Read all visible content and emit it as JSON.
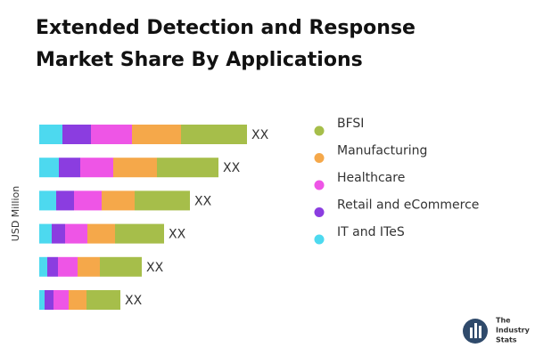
{
  "chart_data": {
    "type": "stacked-barh",
    "title": "Extended Detection and Response Market Share By Applications",
    "ylabel": "USD Million",
    "categories": [
      null,
      null,
      null,
      null,
      null,
      null
    ],
    "series": [
      {
        "name": "IT and ITeS",
        "color": "#4dd9ef",
        "values": [
          26,
          22,
          19,
          14,
          9,
          6
        ]
      },
      {
        "name": "Retail and eCommerce",
        "color": "#8b3de0",
        "values": [
          32,
          24,
          20,
          15,
          12,
          10
        ]
      },
      {
        "name": "Healthcare",
        "color": "#ee55e6",
        "values": [
          46,
          37,
          31,
          25,
          22,
          17
        ]
      },
      {
        "name": "Manufacturing",
        "color": "#f5a84a",
        "values": [
          55,
          49,
          37,
          31,
          25,
          20
        ]
      },
      {
        "name": "BFSI",
        "color": "#a6be4a",
        "values": [
          74,
          69,
          62,
          55,
          47,
          38
        ]
      }
    ],
    "total_labels": [
      "XX",
      "XX",
      "XX",
      "XX",
      "XX",
      "XX"
    ],
    "legend": "right"
  },
  "brand": [
    "The",
    "Industry",
    "Stats"
  ]
}
